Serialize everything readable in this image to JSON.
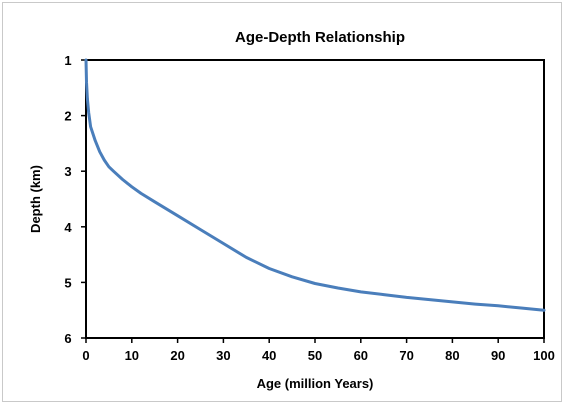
{
  "chart_data": {
    "type": "line",
    "title": "Age-Depth Relationship",
    "xlabel": "Age (million Years)",
    "ylabel": "Depth (km)",
    "xlim": [
      0,
      100
    ],
    "ylim": [
      1,
      6
    ],
    "y_inverted": true,
    "x_ticks": [
      "0",
      "10",
      "20",
      "30",
      "40",
      "50",
      "60",
      "70",
      "80",
      "90",
      "100"
    ],
    "y_ticks": [
      "1",
      "2",
      "3",
      "4",
      "5",
      "6"
    ],
    "grid": false,
    "legend": "none",
    "line_color": "#4a7ebb",
    "series": [
      {
        "x": [
          0,
          0.1,
          0.3,
          0.6,
          1,
          2,
          3,
          4,
          5,
          6,
          8,
          10,
          12,
          15,
          20,
          25,
          30,
          35,
          40,
          45,
          50,
          55,
          60,
          65,
          70,
          75,
          80,
          85,
          90,
          95,
          100
        ],
        "y": [
          1.0,
          1.4,
          1.7,
          1.95,
          2.2,
          2.45,
          2.65,
          2.8,
          2.92,
          3.0,
          3.15,
          3.28,
          3.4,
          3.55,
          3.8,
          4.05,
          4.3,
          4.55,
          4.75,
          4.9,
          5.02,
          5.1,
          5.17,
          5.22,
          5.27,
          5.31,
          5.35,
          5.39,
          5.42,
          5.46,
          5.5
        ]
      }
    ]
  }
}
